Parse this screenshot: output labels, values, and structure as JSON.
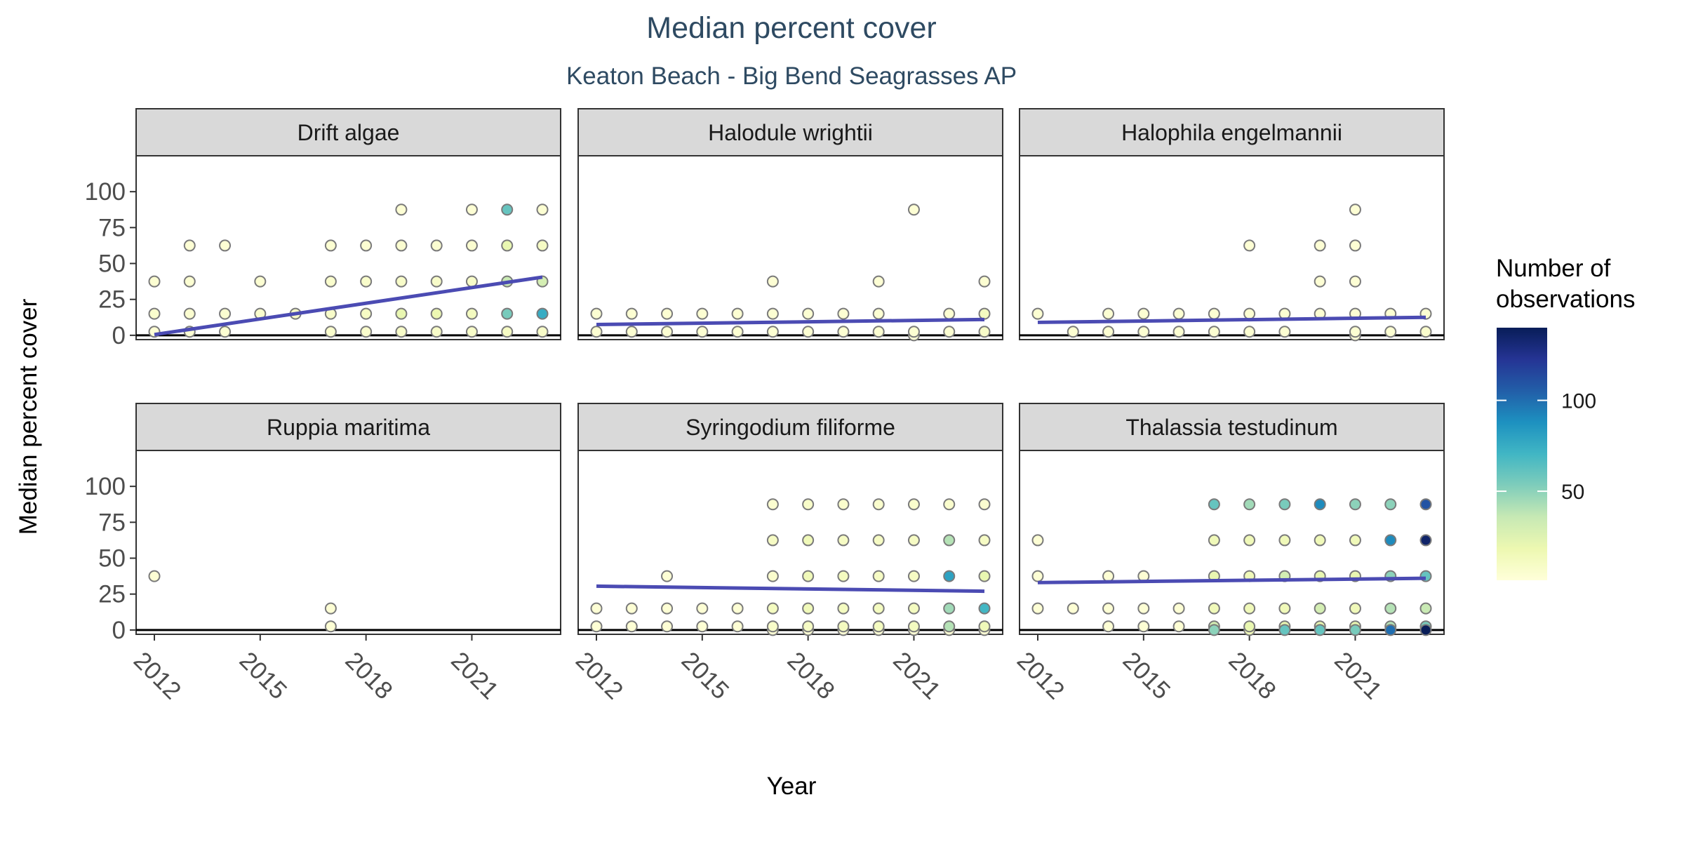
{
  "chart_data": {
    "type": "scatter",
    "title": "Median percent cover",
    "subtitle": "Keaton Beach - Big Bend Seagrasses AP",
    "xlabel": "Year",
    "ylabel": "Median percent cover",
    "xlim": [
      2011.5,
      2023.5
    ],
    "ylim": [
      -3,
      125
    ],
    "x_ticks": [
      2012,
      2015,
      2018,
      2021
    ],
    "y_ticks": [
      0,
      25,
      50,
      75,
      100
    ],
    "grid": false,
    "legend": {
      "title": "Number of observations",
      "position": "right",
      "type": "colorbar",
      "ticks": [
        50,
        100
      ],
      "range": [
        1,
        140
      ],
      "colors": [
        "#ffffd9",
        "#edf8b1",
        "#c7e9b4",
        "#7fcdbb",
        "#41b6c4",
        "#1d91c0",
        "#225ea8",
        "#253494",
        "#081d58"
      ]
    },
    "trend_color": "#4b4bb3",
    "point_stroke": "#7a7a7a",
    "facets": [
      {
        "name": "Drift algae",
        "points": [
          [
            2012,
            2.5,
            3
          ],
          [
            2012,
            15,
            6
          ],
          [
            2012,
            37.5,
            4
          ],
          [
            2013,
            2.5,
            4
          ],
          [
            2013,
            15,
            5
          ],
          [
            2013,
            37.5,
            4
          ],
          [
            2013,
            62.5,
            3
          ],
          [
            2014,
            2.5,
            4
          ],
          [
            2014,
            15,
            5
          ],
          [
            2014,
            62.5,
            3
          ],
          [
            2015,
            15,
            6
          ],
          [
            2015,
            37.5,
            4
          ],
          [
            2016,
            15,
            8
          ],
          [
            2017,
            2.5,
            6
          ],
          [
            2017,
            15,
            8
          ],
          [
            2017,
            37.5,
            6
          ],
          [
            2017,
            62.5,
            4
          ],
          [
            2018,
            2.5,
            6
          ],
          [
            2018,
            15,
            10
          ],
          [
            2018,
            37.5,
            7
          ],
          [
            2018,
            62.5,
            4
          ],
          [
            2019,
            2.5,
            8
          ],
          [
            2019,
            15,
            20
          ],
          [
            2019,
            37.5,
            8
          ],
          [
            2019,
            62.5,
            5
          ],
          [
            2019,
            87.5,
            3
          ],
          [
            2020,
            2.5,
            8
          ],
          [
            2020,
            15,
            18
          ],
          [
            2020,
            37.5,
            8
          ],
          [
            2020,
            62.5,
            5
          ],
          [
            2021,
            2.5,
            8
          ],
          [
            2021,
            15,
            12
          ],
          [
            2021,
            37.5,
            8
          ],
          [
            2021,
            62.5,
            5
          ],
          [
            2021,
            87.5,
            3
          ],
          [
            2022,
            2.5,
            10
          ],
          [
            2022,
            15,
            55
          ],
          [
            2022,
            37.5,
            35
          ],
          [
            2022,
            62.5,
            20
          ],
          [
            2022,
            87.5,
            60
          ],
          [
            2023,
            2.5,
            8
          ],
          [
            2023,
            15,
            75
          ],
          [
            2023,
            37.5,
            30
          ],
          [
            2023,
            62.5,
            10
          ],
          [
            2023,
            87.5,
            4
          ]
        ],
        "trend": [
          [
            2012,
            0.5
          ],
          [
            2023,
            40.5
          ]
        ]
      },
      {
        "name": "Halodule wrightii",
        "points": [
          [
            2012,
            2.5,
            4
          ],
          [
            2012,
            15,
            4
          ],
          [
            2013,
            2.5,
            4
          ],
          [
            2013,
            15,
            4
          ],
          [
            2014,
            2.5,
            4
          ],
          [
            2014,
            15,
            4
          ],
          [
            2015,
            2.5,
            4
          ],
          [
            2015,
            15,
            4
          ],
          [
            2016,
            2.5,
            4
          ],
          [
            2016,
            15,
            4
          ],
          [
            2017,
            2.5,
            4
          ],
          [
            2017,
            15,
            4
          ],
          [
            2017,
            37.5,
            3
          ],
          [
            2018,
            2.5,
            4
          ],
          [
            2018,
            15,
            4
          ],
          [
            2019,
            2.5,
            4
          ],
          [
            2019,
            15,
            4
          ],
          [
            2020,
            2.5,
            4
          ],
          [
            2020,
            15,
            4
          ],
          [
            2020,
            37.5,
            3
          ],
          [
            2021,
            0,
            3
          ],
          [
            2021,
            2.5,
            4
          ],
          [
            2021,
            87.5,
            3
          ],
          [
            2022,
            2.5,
            4
          ],
          [
            2022,
            15,
            4
          ],
          [
            2023,
            2.5,
            8
          ],
          [
            2023,
            15,
            12
          ],
          [
            2023,
            37.5,
            4
          ]
        ],
        "trend": [
          [
            2012,
            7.5
          ],
          [
            2023,
            11
          ]
        ]
      },
      {
        "name": "Halophila engelmannii",
        "points": [
          [
            2012,
            15,
            4
          ],
          [
            2013,
            2.5,
            4
          ],
          [
            2014,
            2.5,
            4
          ],
          [
            2014,
            15,
            4
          ],
          [
            2015,
            2.5,
            4
          ],
          [
            2015,
            15,
            4
          ],
          [
            2016,
            2.5,
            4
          ],
          [
            2016,
            15,
            4
          ],
          [
            2017,
            2.5,
            4
          ],
          [
            2017,
            15,
            4
          ],
          [
            2018,
            2.5,
            4
          ],
          [
            2018,
            15,
            4
          ],
          [
            2018,
            62.5,
            3
          ],
          [
            2019,
            2.5,
            4
          ],
          [
            2019,
            15,
            4
          ],
          [
            2020,
            15,
            4
          ],
          [
            2020,
            37.5,
            3
          ],
          [
            2020,
            62.5,
            3
          ],
          [
            2021,
            0,
            3
          ],
          [
            2021,
            2.5,
            4
          ],
          [
            2021,
            15,
            4
          ],
          [
            2021,
            37.5,
            3
          ],
          [
            2021,
            62.5,
            3
          ],
          [
            2021,
            87.5,
            3
          ],
          [
            2022,
            2.5,
            4
          ],
          [
            2022,
            15,
            4
          ],
          [
            2023,
            2.5,
            6
          ],
          [
            2023,
            15,
            4
          ]
        ],
        "trend": [
          [
            2012,
            9
          ],
          [
            2023,
            12.5
          ]
        ]
      },
      {
        "name": "Ruppia maritima",
        "points": [
          [
            2012,
            37.5,
            3
          ],
          [
            2017,
            2.5,
            3
          ],
          [
            2017,
            15,
            3
          ]
        ],
        "trend": []
      },
      {
        "name": "Syringodium filiforme",
        "points": [
          [
            2012,
            2.5,
            3
          ],
          [
            2012,
            15,
            3
          ],
          [
            2013,
            2.5,
            3
          ],
          [
            2013,
            15,
            3
          ],
          [
            2014,
            2.5,
            3
          ],
          [
            2014,
            15,
            3
          ],
          [
            2014,
            37.5,
            3
          ],
          [
            2015,
            2.5,
            3
          ],
          [
            2015,
            15,
            3
          ],
          [
            2016,
            2.5,
            3
          ],
          [
            2016,
            15,
            3
          ],
          [
            2017,
            0,
            3
          ],
          [
            2017,
            2.5,
            8
          ],
          [
            2017,
            15,
            12
          ],
          [
            2017,
            37.5,
            6
          ],
          [
            2017,
            62.5,
            10
          ],
          [
            2017,
            87.5,
            5
          ],
          [
            2018,
            0,
            3
          ],
          [
            2018,
            2.5,
            10
          ],
          [
            2018,
            15,
            15
          ],
          [
            2018,
            37.5,
            15
          ],
          [
            2018,
            62.5,
            15
          ],
          [
            2018,
            87.5,
            8
          ],
          [
            2019,
            0,
            3
          ],
          [
            2019,
            2.5,
            12
          ],
          [
            2019,
            15,
            12
          ],
          [
            2019,
            37.5,
            12
          ],
          [
            2019,
            62.5,
            10
          ],
          [
            2019,
            87.5,
            6
          ],
          [
            2020,
            0,
            3
          ],
          [
            2020,
            2.5,
            12
          ],
          [
            2020,
            15,
            12
          ],
          [
            2020,
            37.5,
            10
          ],
          [
            2020,
            62.5,
            10
          ],
          [
            2020,
            87.5,
            6
          ],
          [
            2021,
            0,
            3
          ],
          [
            2021,
            2.5,
            12
          ],
          [
            2021,
            15,
            12
          ],
          [
            2021,
            37.5,
            10
          ],
          [
            2021,
            62.5,
            10
          ],
          [
            2021,
            87.5,
            6
          ],
          [
            2022,
            0,
            3
          ],
          [
            2022,
            2.5,
            40
          ],
          [
            2022,
            15,
            45
          ],
          [
            2022,
            37.5,
            80
          ],
          [
            2022,
            62.5,
            40
          ],
          [
            2022,
            87.5,
            6
          ],
          [
            2023,
            0,
            3
          ],
          [
            2023,
            2.5,
            15
          ],
          [
            2023,
            15,
            70
          ],
          [
            2023,
            37.5,
            20
          ],
          [
            2023,
            62.5,
            10
          ],
          [
            2023,
            87.5,
            5
          ]
        ],
        "trend": [
          [
            2012,
            30.5
          ],
          [
            2023,
            27
          ]
        ]
      },
      {
        "name": "Thalassia testudinum",
        "points": [
          [
            2012,
            15,
            3
          ],
          [
            2012,
            37.5,
            3
          ],
          [
            2012,
            62.5,
            3
          ],
          [
            2013,
            15,
            3
          ],
          [
            2014,
            2.5,
            3
          ],
          [
            2014,
            15,
            3
          ],
          [
            2014,
            37.5,
            3
          ],
          [
            2015,
            2.5,
            3
          ],
          [
            2015,
            15,
            3
          ],
          [
            2015,
            37.5,
            3
          ],
          [
            2016,
            2.5,
            3
          ],
          [
            2016,
            15,
            3
          ],
          [
            2017,
            0,
            50
          ],
          [
            2017,
            2.5,
            30
          ],
          [
            2017,
            15,
            15
          ],
          [
            2017,
            37.5,
            20
          ],
          [
            2017,
            62.5,
            15
          ],
          [
            2017,
            87.5,
            60
          ],
          [
            2018,
            0,
            15
          ],
          [
            2018,
            2.5,
            20
          ],
          [
            2018,
            15,
            15
          ],
          [
            2018,
            37.5,
            15
          ],
          [
            2018,
            62.5,
            15
          ],
          [
            2018,
            87.5,
            45
          ],
          [
            2019,
            0,
            60
          ],
          [
            2019,
            2.5,
            20
          ],
          [
            2019,
            15,
            15
          ],
          [
            2019,
            37.5,
            30
          ],
          [
            2019,
            62.5,
            15
          ],
          [
            2019,
            87.5,
            55
          ],
          [
            2020,
            0,
            60
          ],
          [
            2020,
            2.5,
            20
          ],
          [
            2020,
            15,
            30
          ],
          [
            2020,
            37.5,
            20
          ],
          [
            2020,
            62.5,
            15
          ],
          [
            2020,
            87.5,
            90
          ],
          [
            2021,
            0,
            55
          ],
          [
            2021,
            2.5,
            20
          ],
          [
            2021,
            15,
            15
          ],
          [
            2021,
            37.5,
            20
          ],
          [
            2021,
            62.5,
            15
          ],
          [
            2021,
            87.5,
            50
          ],
          [
            2022,
            0,
            100
          ],
          [
            2022,
            2.5,
            40
          ],
          [
            2022,
            15,
            40
          ],
          [
            2022,
            37.5,
            50
          ],
          [
            2022,
            62.5,
            90
          ],
          [
            2022,
            87.5,
            50
          ],
          [
            2023,
            0,
            140
          ],
          [
            2023,
            2.5,
            55
          ],
          [
            2023,
            15,
            35
          ],
          [
            2023,
            37.5,
            60
          ],
          [
            2023,
            62.5,
            135
          ],
          [
            2023,
            87.5,
            110
          ]
        ],
        "trend": [
          [
            2012,
            33
          ],
          [
            2023,
            36
          ]
        ]
      }
    ]
  }
}
